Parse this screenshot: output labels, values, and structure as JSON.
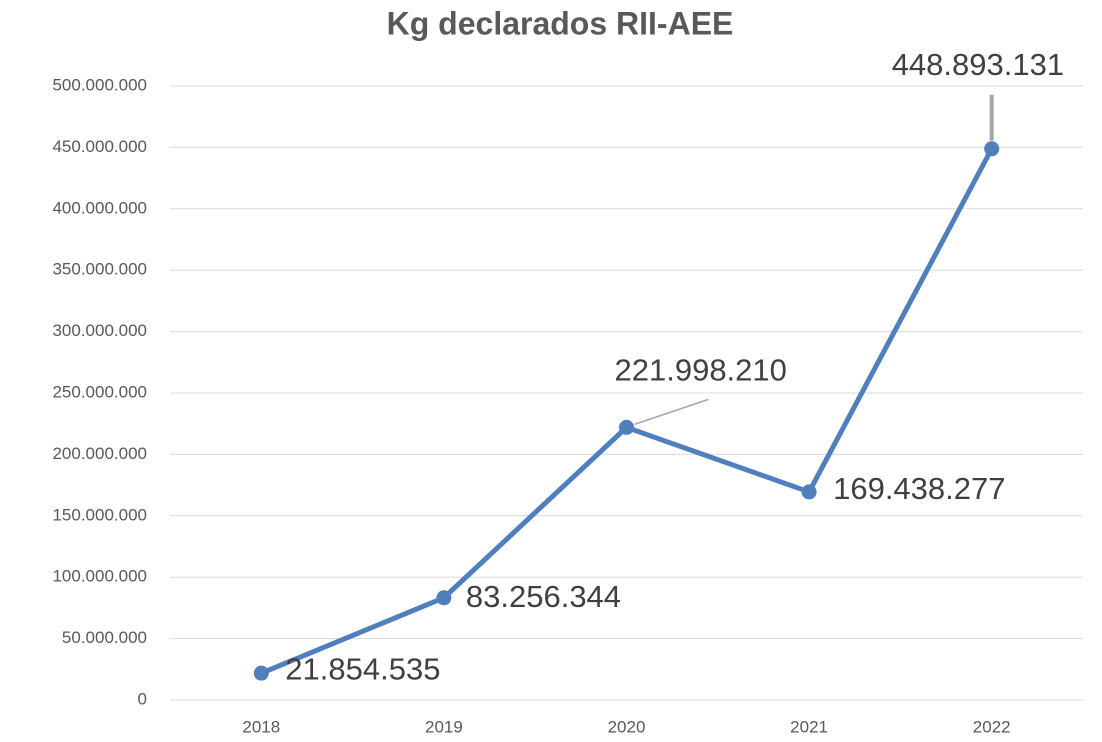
{
  "chart_data": {
    "type": "line",
    "title": "Kg declarados RII-AEE",
    "categories": [
      "2018",
      "2019",
      "2020",
      "2021",
      "2022"
    ],
    "series": [
      {
        "name": "Kg declarados RII-AEE",
        "color": "#4f7fbd",
        "values": [
          21854535,
          83256344,
          221998210,
          169438277,
          448893131
        ],
        "value_labels": [
          "21.854.535",
          "83.256.344",
          "221.998.210",
          "169.438.277",
          "448.893.131"
        ]
      }
    ],
    "ylim": [
      0,
      500000000
    ],
    "yticks": [
      0,
      {
        "value": 50000000,
        "label": "50.000.000"
      },
      {
        "value": 100000000,
        "label": "100.000.000"
      },
      {
        "value": 150000000,
        "label": "150.000.000"
      },
      {
        "value": 200000000,
        "label": "200.000.000"
      },
      {
        "value": 250000000,
        "label": "250.000.000"
      },
      {
        "value": 300000000,
        "label": "300.000.000"
      },
      {
        "value": 350000000,
        "label": "350.000.000"
      },
      {
        "value": 400000000,
        "label": "400.000.000"
      },
      {
        "value": 450000000,
        "label": "450.000.000"
      },
      {
        "value": 500000000,
        "label": "500.000.000"
      }
    ],
    "grid": true
  }
}
